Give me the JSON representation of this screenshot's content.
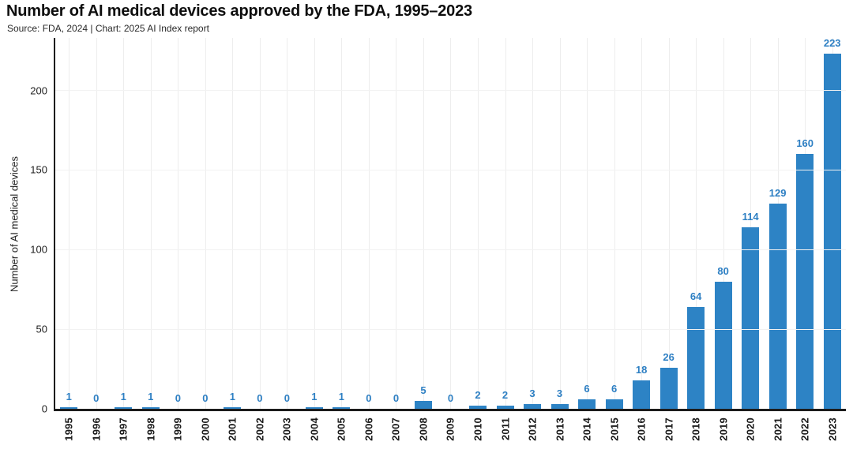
{
  "header": {
    "title": "Number of AI medical devices approved by the FDA, 1995–2023",
    "subtitle": "Source: FDA, 2024 | Chart: 2025 AI Index report"
  },
  "chart_data": {
    "type": "bar",
    "title": "Number of AI medical devices approved by the FDA, 1995–2023",
    "subtitle": "Source: FDA, 2024 | Chart: 2025 AI Index report",
    "categories": [
      "1995",
      "1996",
      "1997",
      "1998",
      "1999",
      "2000",
      "2001",
      "2002",
      "2003",
      "2004",
      "2005",
      "2006",
      "2007",
      "2008",
      "2009",
      "2010",
      "2011",
      "2012",
      "2013",
      "2014",
      "2015",
      "2016",
      "2017",
      "2018",
      "2019",
      "2020",
      "2021",
      "2022",
      "2023"
    ],
    "values": [
      1,
      0,
      1,
      1,
      0,
      0,
      1,
      0,
      0,
      1,
      1,
      0,
      0,
      5,
      0,
      2,
      2,
      3,
      3,
      6,
      6,
      18,
      26,
      64,
      80,
      114,
      129,
      160,
      223
    ],
    "xlabel": "",
    "ylabel": "Number of AI medical devices",
    "yticks": [
      0,
      50,
      100,
      150,
      200
    ],
    "ylim": [
      0,
      233
    ],
    "grid": true,
    "legend": "none",
    "value_labels": true,
    "bar_color": "#2d83c5",
    "value_label_color": "#2d7fc3",
    "axis_color": "#1c1c1c"
  }
}
